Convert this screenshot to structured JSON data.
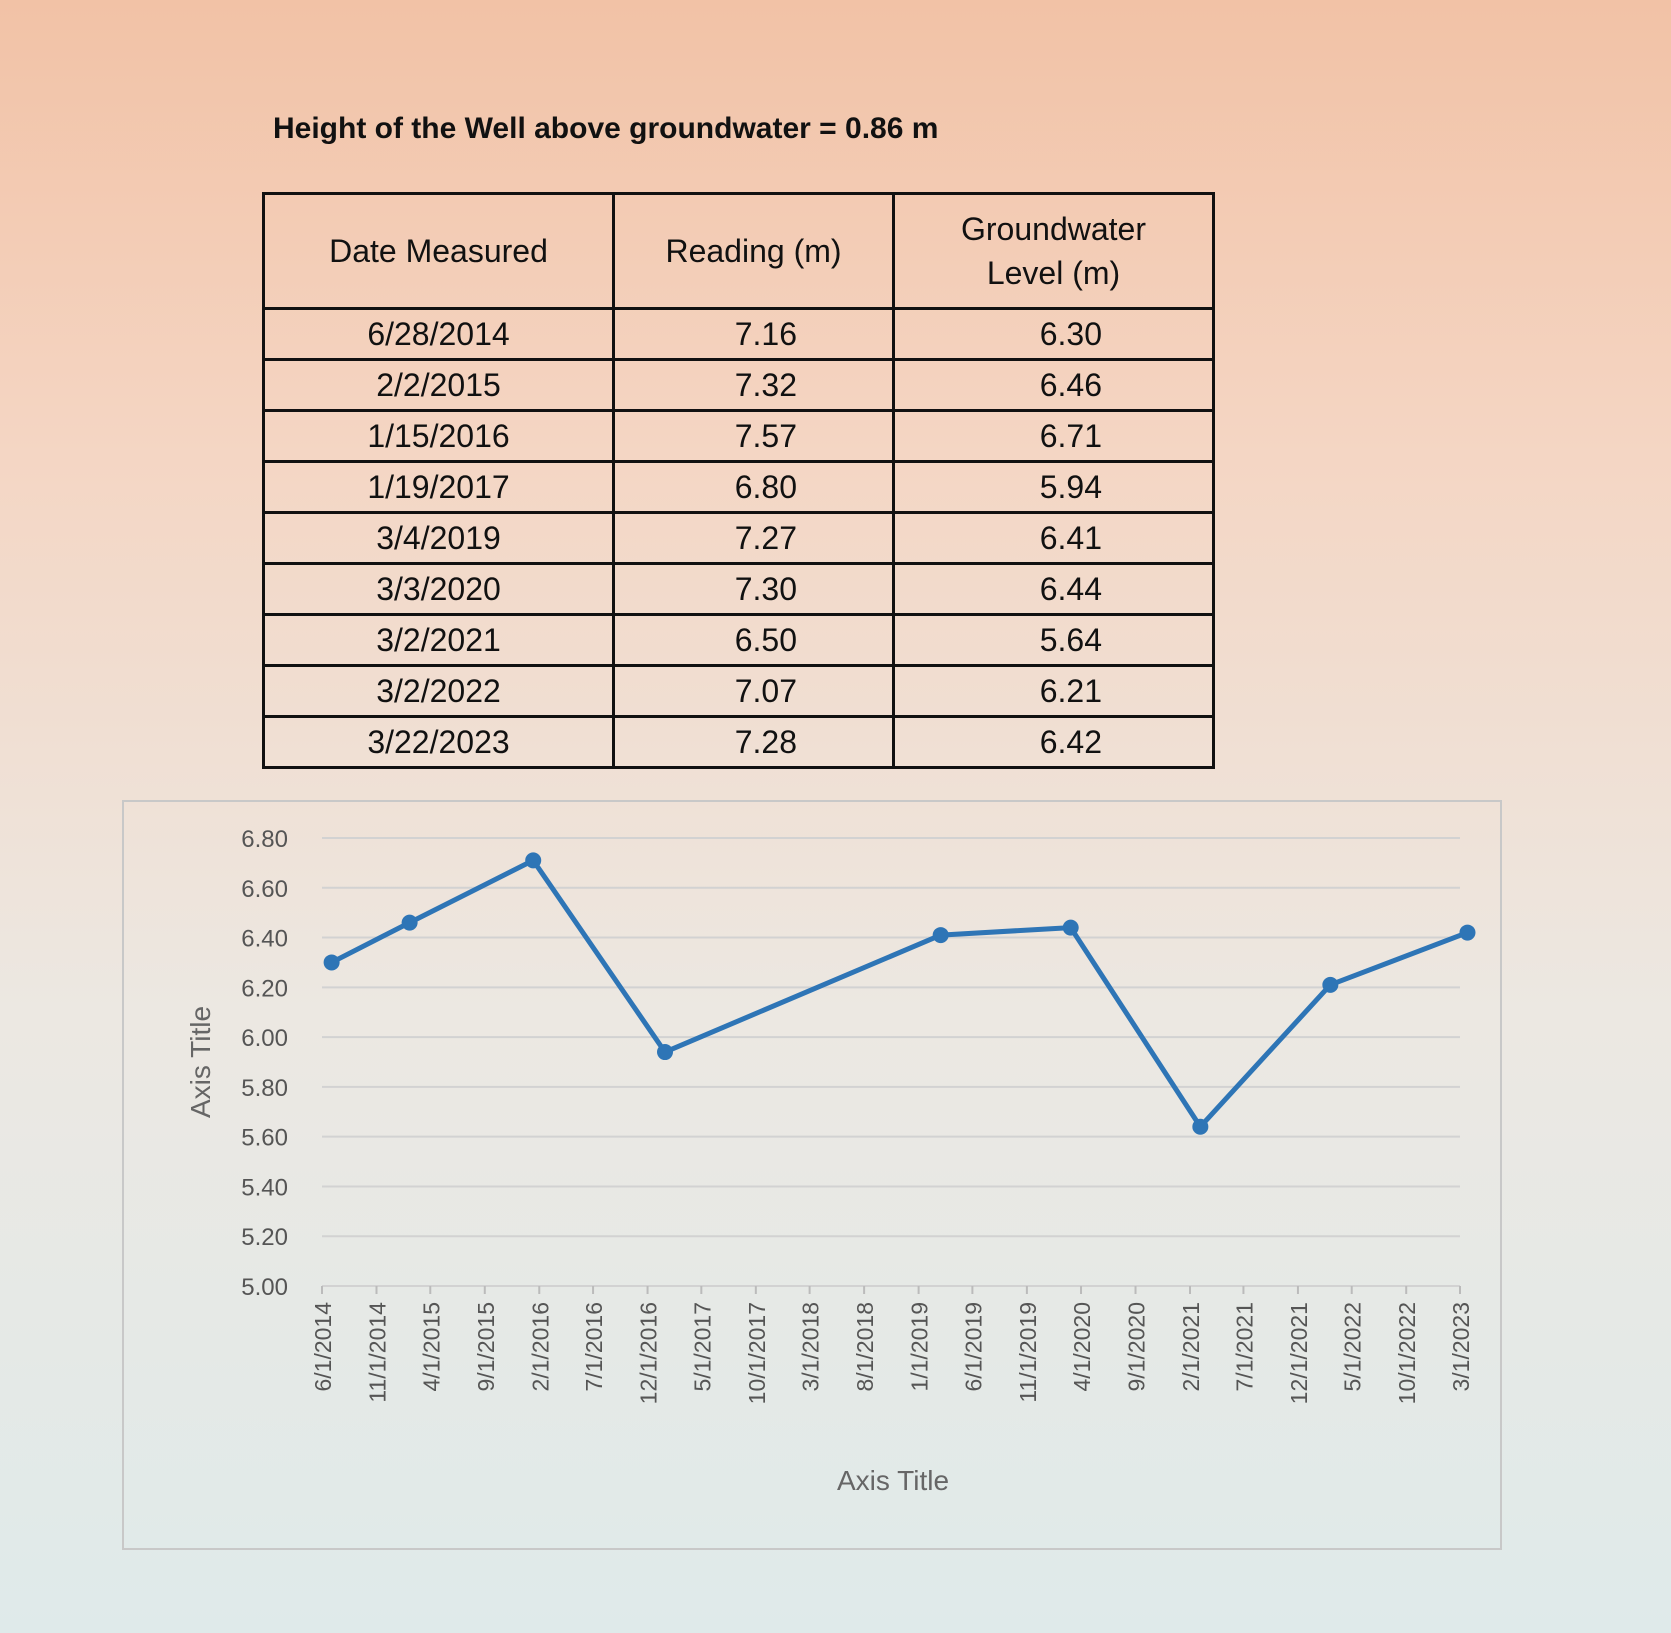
{
  "heading": "Height of the Well above groundwater = 0.86 m",
  "table": {
    "headers": {
      "date": "Date Measured",
      "reading": "Reading (m)",
      "groundwater_line1": "Groundwater",
      "groundwater_line2": "Level (m)"
    },
    "rows": [
      {
        "date": "6/28/2014",
        "reading": "7.16",
        "level": "6.30"
      },
      {
        "date": "2/2/2015",
        "reading": "7.32",
        "level": "6.46"
      },
      {
        "date": "1/15/2016",
        "reading": "7.57",
        "level": "6.71"
      },
      {
        "date": "1/19/2017",
        "reading": "6.80",
        "level": "5.94"
      },
      {
        "date": "3/4/2019",
        "reading": "7.27",
        "level": "6.41"
      },
      {
        "date": "3/3/2020",
        "reading": "7.30",
        "level": "6.44"
      },
      {
        "date": "3/2/2021",
        "reading": "6.50",
        "level": "5.64"
      },
      {
        "date": "3/2/2022",
        "reading": "7.07",
        "level": "6.21"
      },
      {
        "date": "3/22/2023",
        "reading": "7.28",
        "level": "6.42"
      }
    ]
  },
  "chart_data": {
    "type": "line",
    "title": "",
    "xlabel": "Axis Title",
    "ylabel": "Axis Title",
    "ylim": [
      5.0,
      6.8
    ],
    "xlim": [
      "6/1/2014",
      "3/1/2023"
    ],
    "yticks": [
      "6.80",
      "6.60",
      "6.40",
      "6.20",
      "6.00",
      "5.80",
      "5.60",
      "5.40",
      "5.20",
      "5.00"
    ],
    "xticks": [
      "6/1/2014",
      "11/1/2014",
      "4/1/2015",
      "9/1/2015",
      "2/1/2016",
      "7/1/2016",
      "12/1/2016",
      "5/1/2017",
      "10/1/2017",
      "3/1/2018",
      "8/1/2018",
      "1/1/2019",
      "6/1/2019",
      "11/1/2019",
      "4/1/2020",
      "9/1/2020",
      "2/1/2021",
      "7/1/2021",
      "12/1/2021",
      "5/1/2022",
      "10/1/2022",
      "3/1/2023"
    ],
    "grid": true,
    "series": [
      {
        "color": "#2e75b6",
        "points": [
          {
            "x": "6/28/2014",
            "y": 6.3
          },
          {
            "x": "2/2/2015",
            "y": 6.46
          },
          {
            "x": "1/15/2016",
            "y": 6.71
          },
          {
            "x": "1/19/2017",
            "y": 5.94
          },
          {
            "x": "3/4/2019",
            "y": 6.41
          },
          {
            "x": "3/3/2020",
            "y": 6.44
          },
          {
            "x": "3/2/2021",
            "y": 5.64
          },
          {
            "x": "3/2/2022",
            "y": 6.21
          },
          {
            "x": "3/22/2023",
            "y": 6.42
          }
        ]
      }
    ]
  }
}
